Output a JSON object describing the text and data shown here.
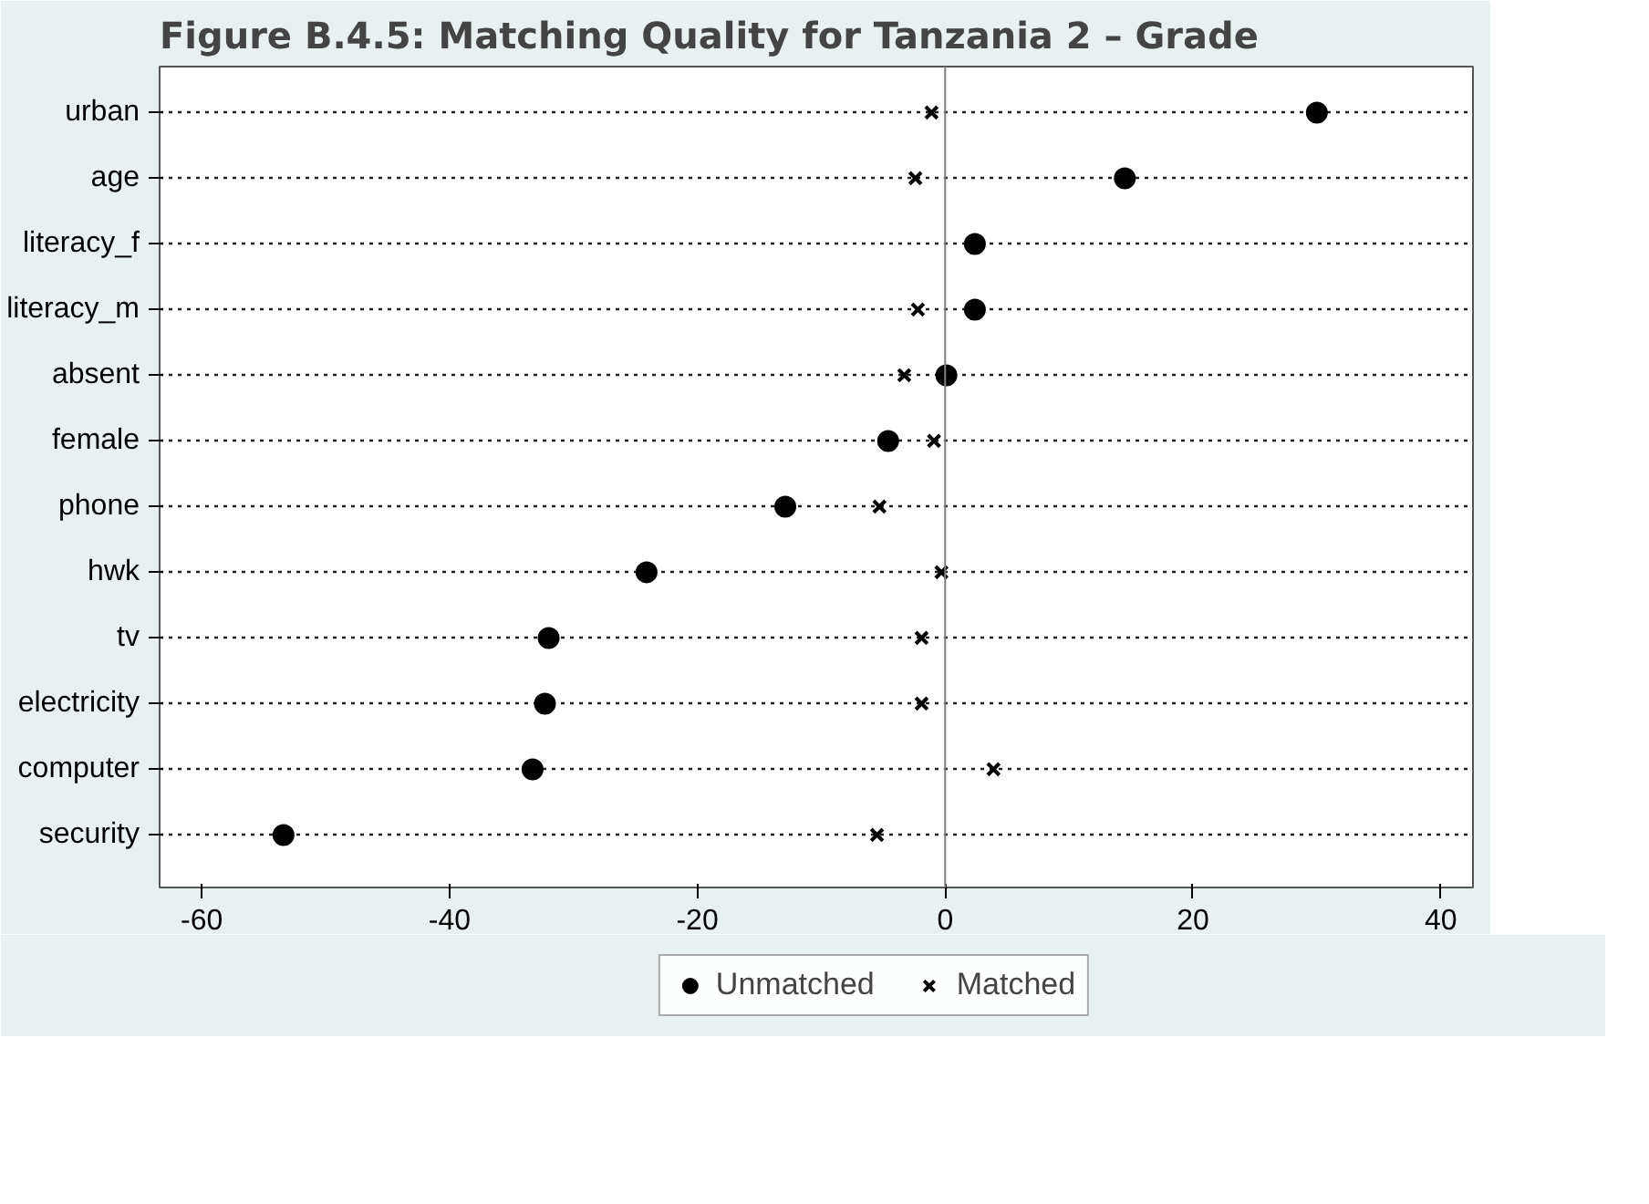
{
  "chart_data": {
    "type": "scatter",
    "title": "Figure B.4.5: Matching Quality for Tanzania 2 – Grade",
    "orientation": "horizontal",
    "categories": [
      "urban",
      "age",
      "literacy_f",
      "literacy_m",
      "absent",
      "female",
      "phone",
      "hwk",
      "tv",
      "electricity",
      "computer",
      "security"
    ],
    "series": [
      {
        "name": "Unmatched",
        "color": "#000000",
        "marker": "circle",
        "values": [
          30,
          14.5,
          2.4,
          2.4,
          0.1,
          -4.6,
          -12.9,
          -24.1,
          -32.0,
          -32.3,
          -33.3,
          -53.4
        ]
      },
      {
        "name": "Matched",
        "color": "#000000",
        "marker": "cross",
        "values": [
          -1.1,
          -2.4,
          null,
          -2.2,
          -3.3,
          -0.9,
          -5.3,
          -0.3,
          -1.9,
          -1.9,
          3.9,
          -5.5
        ]
      }
    ],
    "xlim": [
      -63.4,
      42.6
    ],
    "xticks": [
      -60,
      -40,
      -20,
      0,
      20,
      40
    ],
    "grid": "y",
    "legend": "bottom",
    "ref_lines": [
      {
        "axis": "x",
        "value": 0,
        "color": "#7f7f7f",
        "line_style": "solid"
      }
    ]
  }
}
